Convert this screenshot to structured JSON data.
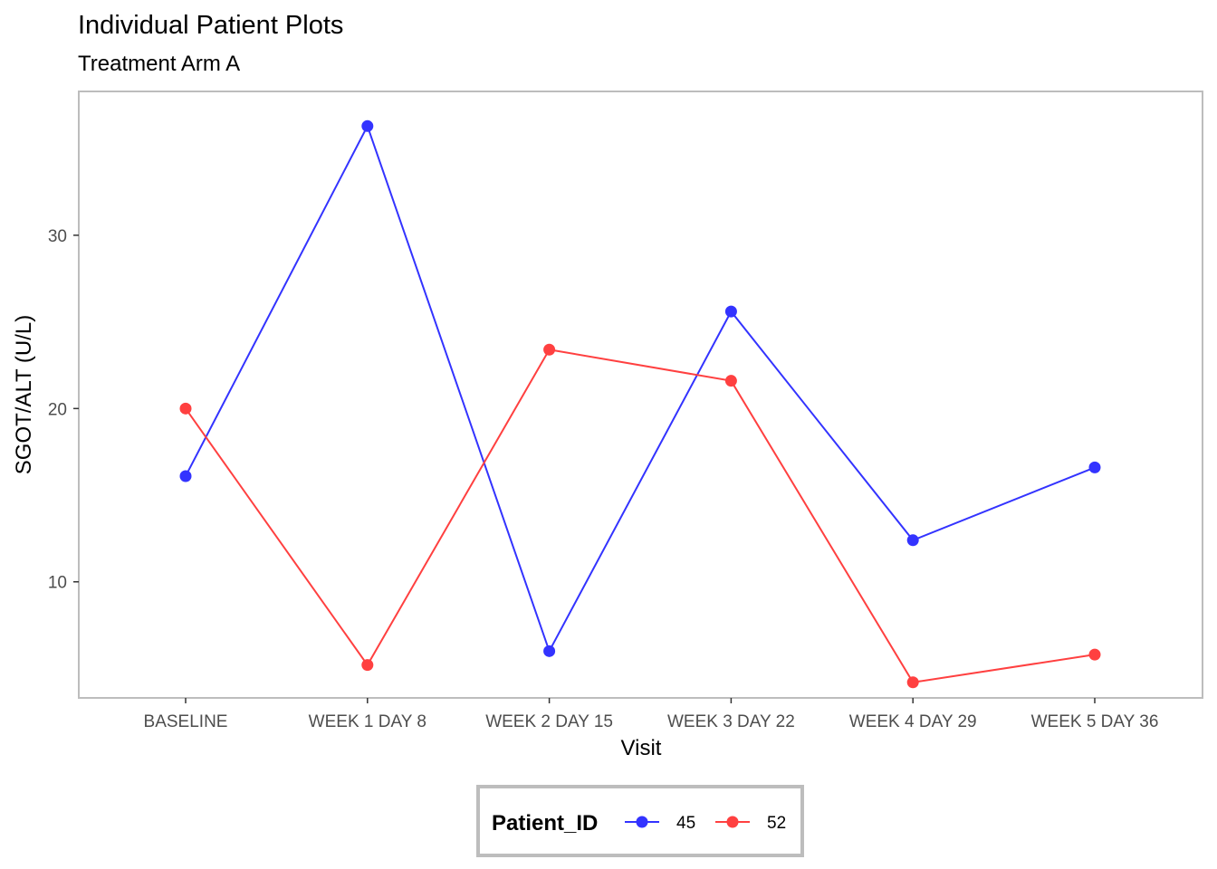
{
  "chart_data": {
    "type": "line",
    "title": "Individual Patient Plots",
    "subtitle": "Treatment Arm A",
    "xlabel": "Visit",
    "ylabel": "SGOT/ALT (U/L)",
    "categories": [
      "BASELINE",
      "WEEK 1 DAY 8",
      "WEEK 2 DAY 15",
      "WEEK 3 DAY 22",
      "WEEK 4 DAY 29",
      "WEEK 5 DAY 36"
    ],
    "ylim": [
      3.3,
      38.3
    ],
    "yticks": [
      10,
      20,
      30
    ],
    "grid": false,
    "legend": {
      "title": "Patient_ID",
      "position": "bottom"
    },
    "series": [
      {
        "name": "45",
        "color": "#3333ff",
        "values": [
          16.1,
          36.3,
          6.0,
          25.6,
          12.4,
          16.6
        ]
      },
      {
        "name": "52",
        "color": "#ff4040",
        "values": [
          20.0,
          5.2,
          23.4,
          21.6,
          4.2,
          5.8
        ]
      }
    ]
  }
}
